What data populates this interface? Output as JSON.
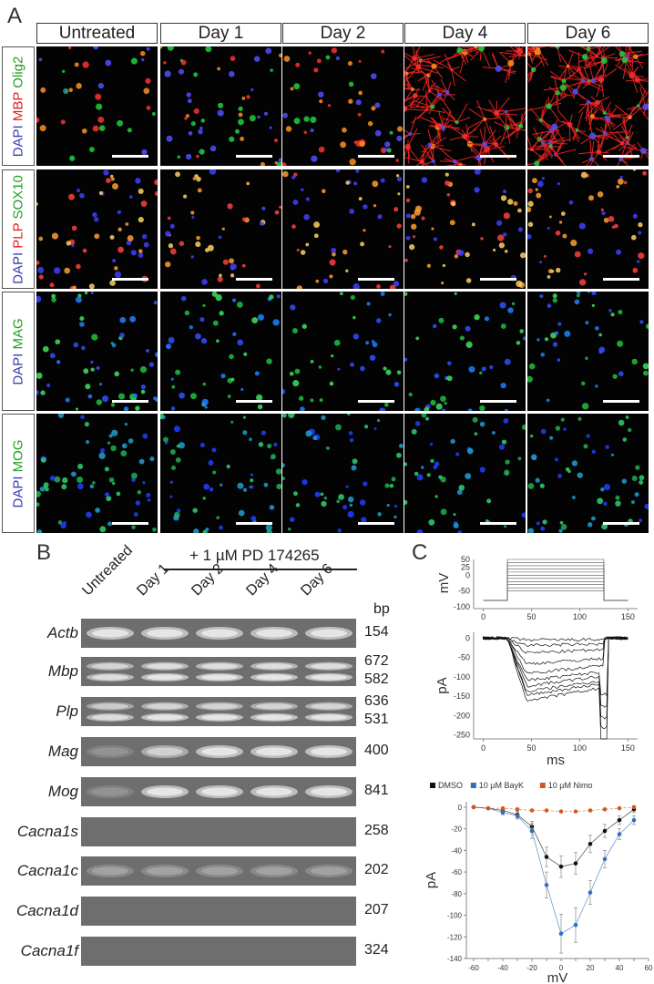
{
  "panel_a": {
    "letter": "A",
    "columns": [
      "Untreated",
      "Day 1",
      "Day 2",
      "Day 4",
      "Day 6"
    ],
    "rows": [
      {
        "label": [
          {
            "t": "DAPI",
            "c": "#3b3bb0"
          },
          {
            "t": " MBP",
            "c": "#e02020"
          },
          {
            "t": " Olig2",
            "c": "#22a022"
          }
        ]
      },
      {
        "label": [
          {
            "t": "DAPI",
            "c": "#3b3bb0"
          },
          {
            "t": " PLP",
            "c": "#e02020"
          },
          {
            "t": " SOX10",
            "c": "#22a022"
          }
        ]
      },
      {
        "label": [
          {
            "t": "DAPI",
            "c": "#3b3bb0"
          },
          {
            "t": " MAG",
            "c": "#22a022"
          }
        ]
      },
      {
        "label": [
          {
            "t": "DAPI",
            "c": "#3b3bb0"
          },
          {
            "t": " MOG",
            "c": "#22a022"
          }
        ]
      }
    ]
  },
  "panel_b": {
    "letter": "B",
    "treatment": "+ 1 µM PD 174265",
    "lanes": [
      "Untreated",
      "Day 1",
      "Day 2",
      "Day 4",
      "Day 6"
    ],
    "bp_header": "bp",
    "genes": [
      {
        "name": "Actb",
        "bp": [
          "154"
        ]
      },
      {
        "name": "Mbp",
        "bp": [
          "672",
          "582"
        ]
      },
      {
        "name": "Plp",
        "bp": [
          "636",
          "531"
        ]
      },
      {
        "name": "Mag",
        "bp": [
          "400"
        ]
      },
      {
        "name": "Mog",
        "bp": [
          "841"
        ]
      },
      {
        "name": "Cacna1s",
        "bp": [
          "258"
        ]
      },
      {
        "name": "Cacna1c",
        "bp": [
          "202"
        ]
      },
      {
        "name": "Cacna1d",
        "bp": [
          "207"
        ]
      },
      {
        "name": "Cacna1f",
        "bp": [
          "324"
        ]
      }
    ]
  },
  "panel_c": {
    "letter": "C",
    "chart_data": [
      {
        "type": "line",
        "ylabel": "mV",
        "xlim": [
          -10,
          160
        ],
        "ylim": [
          -100,
          50
        ],
        "xticks": [
          0,
          50,
          100,
          150
        ],
        "yticks": [
          50,
          25,
          0,
          -50,
          -100
        ],
        "protocol": {
          "holding": -80,
          "step_start": 25,
          "step_end": 125,
          "steps": [
            -50,
            -40,
            -30,
            -20,
            -10,
            0,
            10,
            20,
            30,
            40,
            50
          ]
        }
      },
      {
        "type": "line",
        "xlabel": "ms",
        "ylabel": "pA",
        "xlim": [
          -10,
          160
        ],
        "ylim": [
          -260,
          15
        ],
        "xticks": [
          0,
          50,
          100,
          150
        ],
        "yticks": [
          0,
          -50,
          -100,
          -150,
          -200,
          -250
        ]
      },
      {
        "type": "scatter",
        "xlabel": "mV",
        "ylabel": "pA",
        "xlim": [
          -65,
          60
        ],
        "ylim": [
          -140,
          5
        ],
        "xticks": [
          -60,
          -50,
          -40,
          -30,
          -20,
          -10,
          0,
          10,
          20,
          30,
          40,
          50,
          60
        ],
        "yticks": [
          0,
          -20,
          -40,
          -60,
          -80,
          -100,
          -120,
          -140
        ],
        "legend": "top",
        "series": [
          {
            "name": "DMSO",
            "color": "#111111",
            "x": [
              -60,
              -50,
              -40,
              -30,
              -20,
              -10,
              0,
              10,
              20,
              30,
              40,
              50
            ],
            "y": [
              0,
              -1,
              -3,
              -7,
              -18,
              -46,
              -55,
              -52,
              -34,
              -22,
              -12,
              -2
            ],
            "err": [
              1,
              1,
              2,
              3,
              5,
              9,
              10,
              10,
              8,
              6,
              4,
              3
            ]
          },
          {
            "name": "10 µM BayK",
            "color": "#2e6fbf",
            "x": [
              -60,
              -50,
              -40,
              -30,
              -20,
              -10,
              0,
              10,
              20,
              30,
              40,
              50
            ],
            "y": [
              0,
              -1,
              -5,
              -8,
              -22,
              -72,
              -117,
              -109,
              -79,
              -48,
              -25,
              -12
            ],
            "err": [
              1,
              1,
              2,
              3,
              7,
              12,
              18,
              16,
              11,
              8,
              5,
              4
            ]
          },
          {
            "name": "10 µM Nimo",
            "color": "#d4581f",
            "x": [
              -60,
              -50,
              -40,
              -30,
              -20,
              -10,
              0,
              10,
              20,
              30,
              40,
              50
            ],
            "y": [
              0,
              -1,
              -1,
              -2,
              -3,
              -3,
              -4,
              -4,
              -3,
              -2,
              -1,
              0
            ],
            "err": [
              0,
              0,
              0,
              0,
              0,
              0,
              0,
              0,
              0,
              0,
              0,
              0
            ]
          }
        ]
      }
    ]
  }
}
